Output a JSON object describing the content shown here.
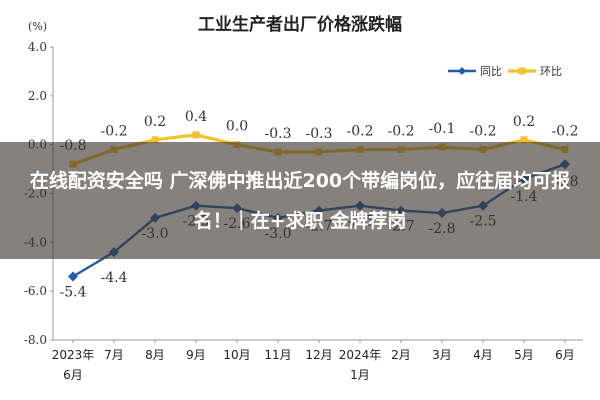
{
  "chart_data": {
    "type": "line",
    "title": "工业生产者出厂价格涨跌幅",
    "unit": "(%)",
    "categories": [
      "2023年6月",
      "7月",
      "8月",
      "9月",
      "10月",
      "11月",
      "12月",
      "2024年1月",
      "2月",
      "3月",
      "4月",
      "5月",
      "6月"
    ],
    "x_tick_lines": [
      [
        "2023年",
        "6月"
      ],
      [
        "7月"
      ],
      [
        "8月"
      ],
      [
        "9月"
      ],
      [
        "10月"
      ],
      [
        "11月"
      ],
      [
        "12月"
      ],
      [
        "2024年",
        "1月"
      ],
      [
        "2月"
      ],
      [
        "3月"
      ],
      [
        "4月"
      ],
      [
        "5月"
      ],
      [
        "6月"
      ]
    ],
    "ylim": [
      -8.0,
      4.0
    ],
    "yticks": [
      "4.0",
      "2.0",
      "0.0",
      "-2.0",
      "-4.0",
      "-6.0",
      "-8.0"
    ],
    "legend_position": "top-right",
    "series": [
      {
        "name": "同比",
        "color": "#1f5fa8",
        "values": [
          -5.4,
          -4.4,
          -3.0,
          -2.5,
          -2.6,
          -3.0,
          -2.7,
          -2.5,
          -2.7,
          -2.8,
          -2.5,
          -1.4,
          -0.8
        ],
        "labels": [
          "-5.4",
          "-4.4",
          "-3.0",
          "-2.5",
          "-2.6",
          "-3.0",
          "-2.7",
          "-2.5",
          "-2.7",
          "-2.8",
          "-2.5",
          "-1.4",
          "-0.8"
        ]
      },
      {
        "name": "环比",
        "color": "#f2c12e",
        "values": [
          -0.8,
          -0.2,
          0.2,
          0.4,
          0.0,
          -0.3,
          -0.3,
          -0.2,
          -0.2,
          -0.1,
          -0.2,
          0.2,
          -0.2
        ],
        "labels": [
          "-0.8",
          "-0.2",
          "0.2",
          "0.4",
          "0.0",
          "-0.3",
          "-0.3",
          "-0.2",
          "-0.2",
          "-0.1",
          "-0.2",
          "0.2",
          "-0.2"
        ]
      }
    ]
  },
  "overlay": {
    "text": "在线配资安全吗 广深佛中推出近200个带编岗位，应往届均可报名！｜在+求职 金牌荐岗"
  }
}
